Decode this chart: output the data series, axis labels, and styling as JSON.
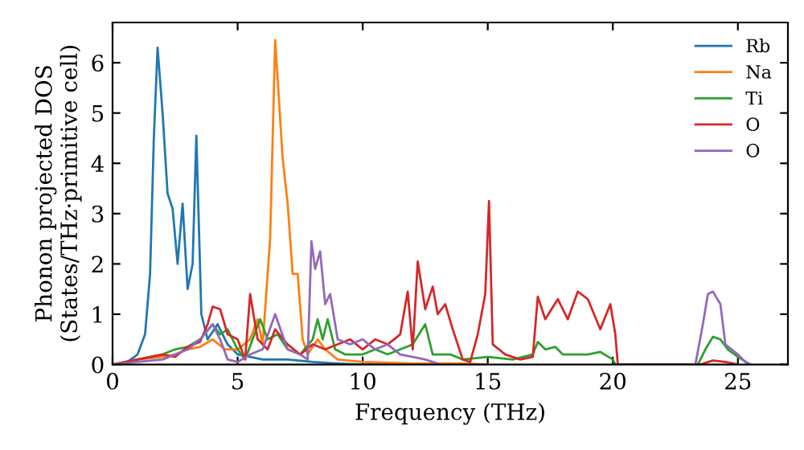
{
  "chart_data": {
    "type": "line",
    "xlabel": "Frequency (THz)",
    "ylabel": "Phonon projected DOS\n(States/THz·primitive cell)",
    "xlim": [
      0,
      27
    ],
    "ylim": [
      0,
      6.8
    ],
    "xticks": [
      0,
      5,
      10,
      15,
      20,
      25
    ],
    "yticks": [
      0,
      1,
      2,
      3,
      4,
      5,
      6
    ],
    "grid": false,
    "legend": "top right",
    "marker": "none",
    "line_style": "solid",
    "series": [
      {
        "name": "Rb",
        "color": "#1f77b4",
        "x": [
          0,
          0.5,
          1,
          1.3,
          1.5,
          1.65,
          1.8,
          2.0,
          2.2,
          2.4,
          2.6,
          2.8,
          3.0,
          3.2,
          3.35,
          3.55,
          3.8,
          4.2,
          4.6,
          5,
          5.5,
          6,
          6.5,
          7,
          8,
          9,
          10,
          12
        ],
        "values": [
          0,
          0.02,
          0.2,
          0.6,
          1.8,
          4.5,
          6.3,
          5.0,
          3.4,
          3.1,
          2.0,
          3.2,
          1.5,
          2.0,
          4.55,
          1.0,
          0.5,
          0.8,
          0.4,
          0.2,
          0.15,
          0.1,
          0.1,
          0.1,
          0.05,
          0.02,
          0,
          0
        ]
      },
      {
        "name": "Na",
        "color": "#ff7f0e",
        "x": [
          0,
          1,
          2,
          2.5,
          3,
          3.5,
          4,
          4.5,
          5,
          5.5,
          5.8,
          6.0,
          6.3,
          6.5,
          6.8,
          7.0,
          7.2,
          7.4,
          7.6,
          7.8,
          8.2,
          8.5,
          9,
          10,
          12,
          14,
          15
        ],
        "values": [
          0,
          0.1,
          0.15,
          0.2,
          0.3,
          0.35,
          0.5,
          0.3,
          0.3,
          0.5,
          0.9,
          0.4,
          2.5,
          6.45,
          4.1,
          3.2,
          1.8,
          1.8,
          0.5,
          0.2,
          0.5,
          0.3,
          0.1,
          0.05,
          0.02,
          0.02,
          0
        ]
      },
      {
        "name": "Ti",
        "color": "#2ca02c",
        "x": [
          0,
          1,
          2,
          2.5,
          3,
          3.5,
          4,
          4.3,
          4.6,
          5,
          5.3,
          5.6,
          5.9,
          6.2,
          6.6,
          7,
          7.5,
          8,
          8.2,
          8.4,
          8.6,
          8.9,
          9.3,
          10,
          10.5,
          11,
          11.5,
          12,
          12.5,
          12.8,
          13.5,
          14,
          15,
          16,
          16.8,
          17,
          17.3,
          17.7,
          18,
          19,
          19.5,
          20,
          20.1,
          23.4,
          23.7,
          24,
          24.3,
          24.6,
          25,
          25.5
        ],
        "values": [
          0,
          0.1,
          0.2,
          0.3,
          0.35,
          0.5,
          0.8,
          0.6,
          0.7,
          0.3,
          0.1,
          0.5,
          0.9,
          0.5,
          0.6,
          0.3,
          0.2,
          0.5,
          0.9,
          0.5,
          0.9,
          0.3,
          0.2,
          0.2,
          0.3,
          0.2,
          0.3,
          0.4,
          0.8,
          0.2,
          0.2,
          0.1,
          0.15,
          0.1,
          0.2,
          0.45,
          0.3,
          0.35,
          0.2,
          0.2,
          0.25,
          0.1,
          0,
          0,
          0.3,
          0.55,
          0.5,
          0.3,
          0.15,
          0
        ]
      },
      {
        "name": "O",
        "color": "#d62728",
        "x": [
          0,
          1,
          2,
          2.5,
          3,
          3.5,
          3.8,
          4,
          4.3,
          4.6,
          5,
          5.3,
          5.5,
          5.8,
          6.2,
          6.5,
          7,
          7.5,
          8,
          8.5,
          9,
          9.5,
          10,
          10.5,
          11,
          11.5,
          11.8,
          12,
          12.2,
          12.5,
          12.8,
          13,
          13.3,
          13.6,
          14,
          14.3,
          14.6,
          14.9,
          15.05,
          15.2,
          15.7,
          16.3,
          16.8,
          17,
          17.3,
          17.8,
          18.2,
          18.6,
          19,
          19.5,
          19.9,
          20.1,
          20.2,
          23.5,
          24,
          24.5,
          25
        ],
        "values": [
          0,
          0.1,
          0.2,
          0.15,
          0.35,
          0.45,
          0.8,
          1.15,
          1.1,
          0.6,
          0.5,
          0.1,
          1.4,
          0.5,
          0.3,
          0.7,
          0.4,
          0.2,
          0.4,
          0.3,
          0.4,
          0.5,
          0.3,
          0.5,
          0.4,
          0.6,
          1.45,
          0.3,
          2.05,
          1.1,
          1.55,
          1.0,
          1.2,
          0.7,
          0.1,
          0.05,
          0.6,
          1.4,
          3.25,
          0.4,
          0.2,
          0.1,
          0.15,
          1.35,
          0.9,
          1.3,
          0.9,
          1.45,
          1.3,
          0.7,
          1.2,
          0.6,
          0,
          0,
          0.08,
          0.05,
          0
        ]
      },
      {
        "name": "O",
        "color": "#9467bd",
        "x": [
          0,
          1,
          2,
          3,
          3.5,
          4,
          4.3,
          4.6,
          5,
          5.5,
          6,
          6.5,
          7,
          7.5,
          7.8,
          7.95,
          8.1,
          8.3,
          8.5,
          8.7,
          9,
          9.5,
          10,
          10.5,
          11,
          11.5,
          12,
          12.5,
          13,
          14,
          23.3,
          23.6,
          23.8,
          24,
          24.3,
          24.5,
          25,
          25.3,
          25.5
        ],
        "values": [
          0,
          0.05,
          0.1,
          0.3,
          0.5,
          0.8,
          0.5,
          0.1,
          0.05,
          0.2,
          0.3,
          1.0,
          0.3,
          0.2,
          0.1,
          2.45,
          1.9,
          2.25,
          1.2,
          1.4,
          0.5,
          0.4,
          0.5,
          0.3,
          0.4,
          0.2,
          0.15,
          0.1,
          0.02,
          null,
          0,
          0.8,
          1.4,
          1.45,
          1.2,
          0.4,
          0.2,
          0.05,
          0
        ]
      }
    ]
  }
}
